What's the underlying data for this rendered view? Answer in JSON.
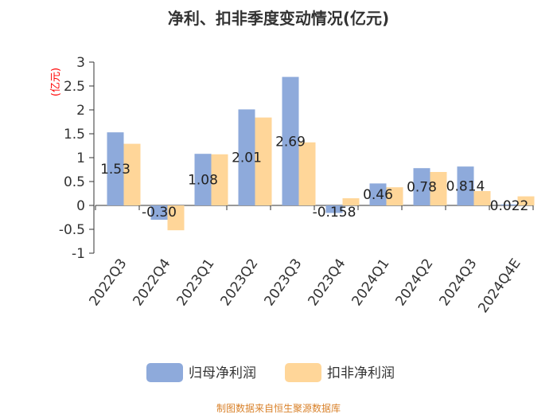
{
  "chart_data": {
    "type": "bar",
    "title": "净利、扣非季度变动情况(亿元)",
    "ylabel": "(亿元)",
    "xlabel": "",
    "ylim": [
      -1,
      3
    ],
    "yticks": [
      "3",
      "2.5",
      "2",
      "1.5",
      "1",
      "0.5",
      "0",
      "-0.5",
      "-1"
    ],
    "categories": [
      "2022Q3",
      "2022Q4",
      "2023Q1",
      "2023Q2",
      "2023Q3",
      "2023Q4",
      "2024Q1",
      "2024Q2",
      "2024Q3",
      "2024Q4E"
    ],
    "series": [
      {
        "name": "归母净利润",
        "color": "#8eaadb",
        "values": [
          1.53,
          -0.3,
          1.08,
          2.01,
          2.69,
          -0.158,
          0.46,
          0.78,
          0.814,
          0.022
        ],
        "labels": [
          "1.53",
          "-0.30",
          "1.08",
          "2.01",
          "2.69",
          "-0.158",
          "0.46",
          "0.78",
          "0.814",
          "0.022"
        ]
      },
      {
        "name": "扣非净利润",
        "color": "#ffd699",
        "values": [
          1.29,
          -0.52,
          1.07,
          1.84,
          1.32,
          0.15,
          0.38,
          0.7,
          0.3,
          0.19
        ]
      }
    ],
    "grid": false,
    "legend": "bottom-center"
  },
  "source": "制图数据来自恒生聚源数据库"
}
